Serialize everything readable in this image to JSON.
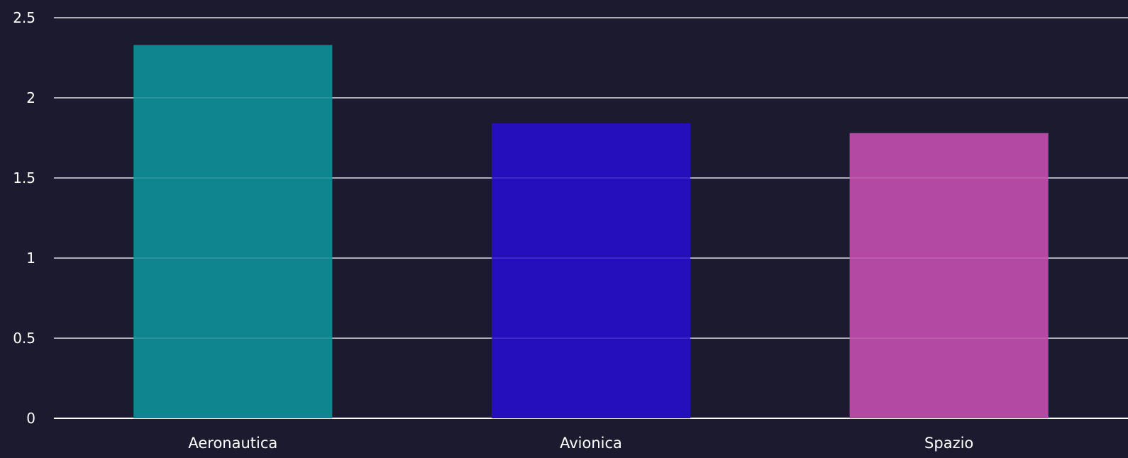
{
  "chart_data": {
    "type": "bar",
    "categories": [
      "Aeronautica",
      "Avionica",
      "Spazio"
    ],
    "values": [
      2.33,
      1.84,
      1.78
    ],
    "colors": [
      "#0f8590",
      "#250fbc",
      "#b449a3"
    ],
    "title": "",
    "xlabel": "",
    "ylabel": "",
    "ylim": [
      0,
      2.5
    ],
    "yticks": [
      0,
      0.5,
      1,
      1.5,
      2,
      2.5
    ],
    "ytick_labels": [
      "0",
      "0.5",
      "1",
      "1.5",
      "2",
      "2.5"
    ],
    "grid": true,
    "legend": "none",
    "background": "#1c1a2e",
    "gridline_color": "#ffffff"
  }
}
